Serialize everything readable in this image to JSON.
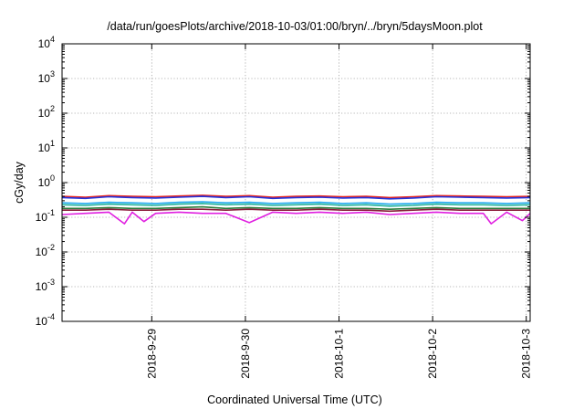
{
  "chart_data": {
    "type": "line",
    "title": "/data/run/goesPlots/archive/2018-10-03/01:00/bryn/../bryn/5daysMoon.plot",
    "xlabel": "Coordinated Universal Time (UTC)",
    "ylabel": "cGy/day",
    "yscale": "log",
    "ylim": [
      0.0001,
      10000
    ],
    "xlim": [
      "2018-09-28T01:00",
      "2018-10-03T01:00"
    ],
    "grid": true,
    "legend": "none",
    "y_ticks": [
      {
        "value": 0.0001,
        "base": "10",
        "exp": "-4"
      },
      {
        "value": 0.001,
        "base": "10",
        "exp": "-3"
      },
      {
        "value": 0.01,
        "base": "10",
        "exp": "-2"
      },
      {
        "value": 0.1,
        "base": "10",
        "exp": "-1"
      },
      {
        "value": 1,
        "base": "10",
        "exp": "0"
      },
      {
        "value": 10,
        "base": "10",
        "exp": "1"
      },
      {
        "value": 100,
        "base": "10",
        "exp": "2"
      },
      {
        "value": 1000,
        "base": "10",
        "exp": "3"
      },
      {
        "value": 10000,
        "base": "10",
        "exp": "4"
      }
    ],
    "x_ticks": [
      {
        "value": "2018-09-29T00:00",
        "label": "2018-9-29"
      },
      {
        "value": "2018-09-30T00:00",
        "label": "2018-9-30"
      },
      {
        "value": "2018-10-01T00:00",
        "label": "2018-10-1"
      },
      {
        "value": "2018-10-02T00:00",
        "label": "2018-10-2"
      },
      {
        "value": "2018-10-03T00:00",
        "label": "2018-10-3"
      }
    ],
    "series": [
      {
        "color": "#e8251f",
        "x": [
          "2018-09-28T01:00",
          "2018-09-28T07:00",
          "2018-09-28T13:00",
          "2018-09-28T19:00",
          "2018-09-29T01:00",
          "2018-09-29T07:00",
          "2018-09-29T13:00",
          "2018-09-29T19:00",
          "2018-09-30T01:00",
          "2018-09-30T07:00",
          "2018-09-30T13:00",
          "2018-09-30T19:00",
          "2018-10-01T01:00",
          "2018-10-01T07:00",
          "2018-10-01T13:00",
          "2018-10-01T19:00",
          "2018-10-02T01:00",
          "2018-10-02T07:00",
          "2018-10-02T13:00",
          "2018-10-02T19:00",
          "2018-10-03T01:00"
        ],
        "y": [
          0.4,
          0.38,
          0.42,
          0.4,
          0.39,
          0.41,
          0.43,
          0.4,
          0.42,
          0.38,
          0.4,
          0.41,
          0.39,
          0.4,
          0.37,
          0.39,
          0.42,
          0.41,
          0.4,
          0.39,
          0.4
        ]
      },
      {
        "color": "#2233dd",
        "x": [
          "2018-09-28T01:00",
          "2018-09-28T07:00",
          "2018-09-28T13:00",
          "2018-09-28T19:00",
          "2018-09-29T01:00",
          "2018-09-29T07:00",
          "2018-09-29T13:00",
          "2018-09-29T19:00",
          "2018-09-30T01:00",
          "2018-09-30T07:00",
          "2018-09-30T13:00",
          "2018-09-30T19:00",
          "2018-10-01T01:00",
          "2018-10-01T07:00",
          "2018-10-01T13:00",
          "2018-10-01T19:00",
          "2018-10-02T01:00",
          "2018-10-02T07:00",
          "2018-10-02T13:00",
          "2018-10-02T19:00",
          "2018-10-03T01:00"
        ],
        "y": [
          0.37,
          0.35,
          0.39,
          0.37,
          0.36,
          0.38,
          0.4,
          0.37,
          0.39,
          0.35,
          0.37,
          0.38,
          0.36,
          0.37,
          0.34,
          0.36,
          0.39,
          0.38,
          0.37,
          0.36,
          0.37
        ]
      },
      {
        "color": "#22aaee",
        "x": [
          "2018-09-28T01:00",
          "2018-09-28T07:00",
          "2018-09-28T13:00",
          "2018-09-28T19:00",
          "2018-09-29T01:00",
          "2018-09-29T07:00",
          "2018-09-29T13:00",
          "2018-09-29T19:00",
          "2018-09-30T01:00",
          "2018-09-30T07:00",
          "2018-09-30T13:00",
          "2018-09-30T19:00",
          "2018-10-01T01:00",
          "2018-10-01T07:00",
          "2018-10-01T13:00",
          "2018-10-01T19:00",
          "2018-10-02T01:00",
          "2018-10-02T07:00",
          "2018-10-02T13:00",
          "2018-10-02T19:00",
          "2018-10-03T01:00"
        ],
        "y": [
          0.26,
          0.25,
          0.27,
          0.26,
          0.25,
          0.27,
          0.28,
          0.26,
          0.27,
          0.25,
          0.26,
          0.27,
          0.25,
          0.26,
          0.24,
          0.25,
          0.27,
          0.26,
          0.26,
          0.25,
          0.26
        ]
      },
      {
        "color": "#22b39a",
        "x": [
          "2018-09-28T01:00",
          "2018-09-28T07:00",
          "2018-09-28T13:00",
          "2018-09-28T19:00",
          "2018-09-29T01:00",
          "2018-09-29T07:00",
          "2018-09-29T13:00",
          "2018-09-29T19:00",
          "2018-09-30T01:00",
          "2018-09-30T07:00",
          "2018-09-30T13:00",
          "2018-09-30T19:00",
          "2018-10-01T01:00",
          "2018-10-01T07:00",
          "2018-10-01T13:00",
          "2018-10-01T19:00",
          "2018-10-02T01:00",
          "2018-10-02T07:00",
          "2018-10-02T13:00",
          "2018-10-02T19:00",
          "2018-10-03T01:00"
        ],
        "y": [
          0.23,
          0.22,
          0.24,
          0.23,
          0.22,
          0.24,
          0.25,
          0.23,
          0.24,
          0.22,
          0.23,
          0.24,
          0.22,
          0.23,
          0.21,
          0.22,
          0.24,
          0.23,
          0.23,
          0.22,
          0.23
        ]
      },
      {
        "color": "#2a7a3a",
        "x": [
          "2018-09-28T01:00",
          "2018-09-28T07:00",
          "2018-09-28T13:00",
          "2018-09-28T19:00",
          "2018-09-29T01:00",
          "2018-09-29T07:00",
          "2018-09-29T13:00",
          "2018-09-29T19:00",
          "2018-09-30T01:00",
          "2018-09-30T07:00",
          "2018-09-30T13:00",
          "2018-09-30T19:00",
          "2018-10-01T01:00",
          "2018-10-01T07:00",
          "2018-10-01T13:00",
          "2018-10-01T19:00",
          "2018-10-02T01:00",
          "2018-10-02T07:00",
          "2018-10-02T13:00",
          "2018-10-02T19:00",
          "2018-10-03T01:00"
        ],
        "y": [
          0.18,
          0.18,
          0.19,
          0.18,
          0.18,
          0.19,
          0.2,
          0.18,
          0.19,
          0.18,
          0.18,
          0.19,
          0.18,
          0.18,
          0.17,
          0.18,
          0.19,
          0.18,
          0.18,
          0.18,
          0.18
        ]
      },
      {
        "color": "#8a1a3a",
        "x": [
          "2018-09-28T01:00",
          "2018-09-28T07:00",
          "2018-09-28T13:00",
          "2018-09-28T19:00",
          "2018-09-29T01:00",
          "2018-09-29T07:00",
          "2018-09-29T13:00",
          "2018-09-29T19:00",
          "2018-09-30T01:00",
          "2018-09-30T07:00",
          "2018-09-30T13:00",
          "2018-09-30T19:00",
          "2018-10-01T01:00",
          "2018-10-01T07:00",
          "2018-10-01T13:00",
          "2018-10-01T19:00",
          "2018-10-02T01:00",
          "2018-10-02T07:00",
          "2018-10-02T13:00",
          "2018-10-02T19:00",
          "2018-10-03T01:00"
        ],
        "y": [
          0.16,
          0.16,
          0.17,
          0.16,
          0.16,
          0.17,
          0.17,
          0.16,
          0.17,
          0.16,
          0.16,
          0.17,
          0.16,
          0.16,
          0.15,
          0.16,
          0.17,
          0.16,
          0.16,
          0.16,
          0.16
        ]
      },
      {
        "color": "#e020e0",
        "x": [
          "2018-09-28T01:00",
          "2018-09-28T07:00",
          "2018-09-28T13:00",
          "2018-09-28T17:00",
          "2018-09-28T19:00",
          "2018-09-28T22:00",
          "2018-09-29T01:00",
          "2018-09-29T07:00",
          "2018-09-29T13:00",
          "2018-09-29T19:00",
          "2018-09-30T01:00",
          "2018-09-30T07:00",
          "2018-09-30T13:00",
          "2018-09-30T19:00",
          "2018-10-01T01:00",
          "2018-10-01T07:00",
          "2018-10-01T13:00",
          "2018-10-01T19:00",
          "2018-10-02T01:00",
          "2018-10-02T07:00",
          "2018-10-02T13:00",
          "2018-10-02T15:00",
          "2018-10-02T19:00",
          "2018-10-02T23:00",
          "2018-10-03T01:00"
        ],
        "y": [
          0.12,
          0.13,
          0.14,
          0.065,
          0.14,
          0.075,
          0.13,
          0.14,
          0.13,
          0.13,
          0.07,
          0.14,
          0.13,
          0.14,
          0.13,
          0.14,
          0.12,
          0.13,
          0.14,
          0.13,
          0.13,
          0.065,
          0.14,
          0.08,
          0.13
        ]
      }
    ]
  }
}
